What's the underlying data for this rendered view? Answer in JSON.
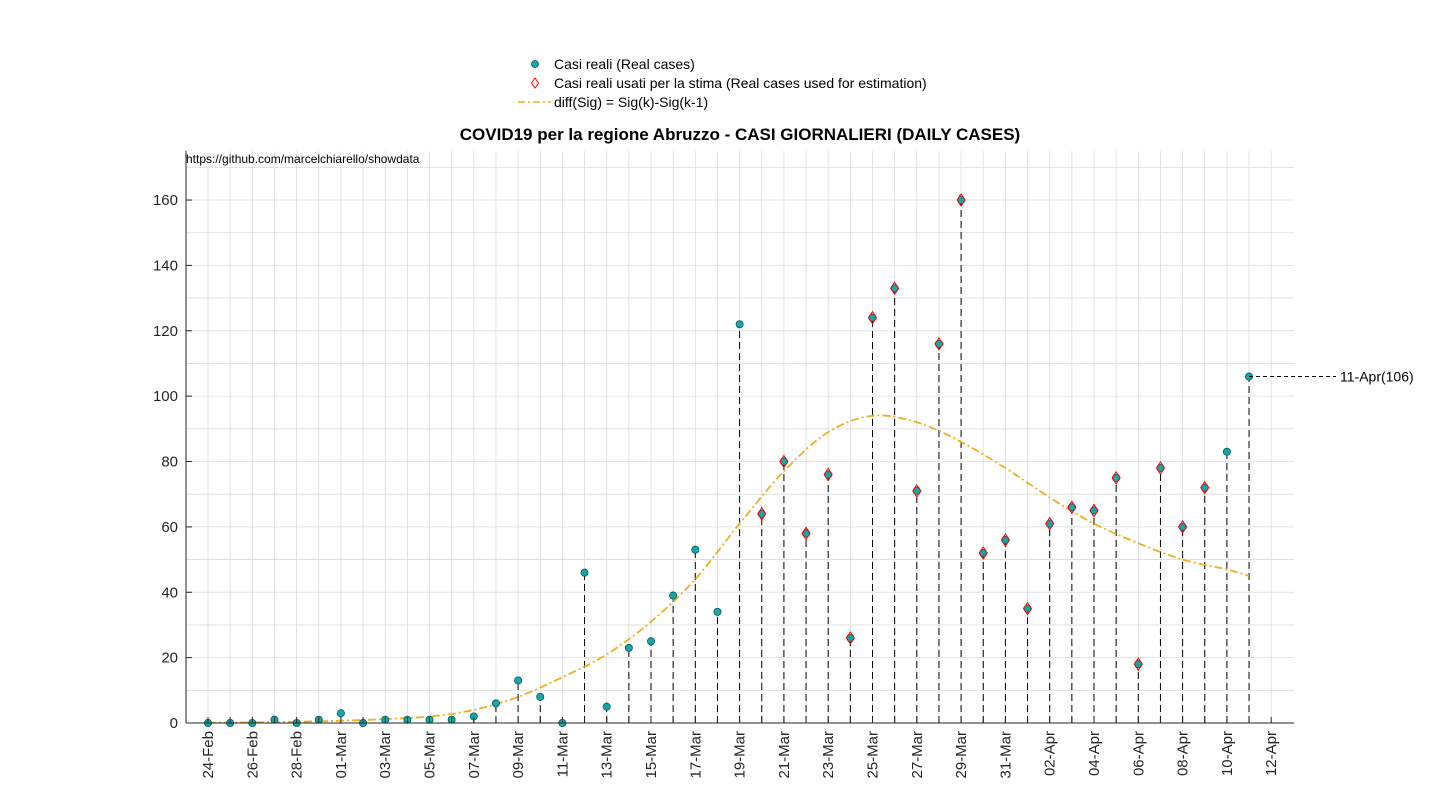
{
  "chart_data": {
    "type": "scatter",
    "title": "COVID19 per la regione Abruzzo - CASI GIORNALIERI (DAILY CASES)",
    "source_note": "https://github.com/marcelchiarello/showdata",
    "xlabel": "",
    "ylabel": "",
    "ylim": [
      0,
      175
    ],
    "yticks": [
      0,
      20,
      40,
      60,
      80,
      100,
      120,
      140,
      160
    ],
    "xticks": [
      "24-Feb",
      "26-Feb",
      "28-Feb",
      "01-Mar",
      "03-Mar",
      "05-Mar",
      "07-Mar",
      "09-Mar",
      "11-Mar",
      "13-Mar",
      "15-Mar",
      "17-Mar",
      "19-Mar",
      "21-Mar",
      "23-Mar",
      "25-Mar",
      "27-Mar",
      "29-Mar",
      "31-Mar",
      "02-Apr",
      "04-Apr",
      "06-Apr",
      "08-Apr",
      "10-Apr",
      "12-Apr"
    ],
    "grid": true,
    "legend_position": "top-center",
    "x_dates": [
      "24-Feb",
      "25-Feb",
      "26-Feb",
      "27-Feb",
      "28-Feb",
      "29-Feb",
      "01-Mar",
      "02-Mar",
      "03-Mar",
      "04-Mar",
      "05-Mar",
      "06-Mar",
      "07-Mar",
      "08-Mar",
      "09-Mar",
      "10-Mar",
      "11-Mar",
      "12-Mar",
      "13-Mar",
      "14-Mar",
      "15-Mar",
      "16-Mar",
      "17-Mar",
      "18-Mar",
      "19-Mar",
      "20-Mar",
      "21-Mar",
      "22-Mar",
      "23-Mar",
      "24-Mar",
      "25-Mar",
      "26-Mar",
      "27-Mar",
      "28-Mar",
      "29-Mar",
      "30-Mar",
      "31-Mar",
      "01-Apr",
      "02-Apr",
      "03-Apr",
      "04-Apr",
      "05-Apr",
      "06-Apr",
      "07-Apr",
      "08-Apr",
      "09-Apr",
      "10-Apr",
      "11-Apr"
    ],
    "series": [
      {
        "name": "Casi reali (Real cases)",
        "values": [
          0,
          0,
          0,
          1,
          0,
          1,
          3,
          0,
          1,
          1,
          1,
          1,
          2,
          6,
          13,
          8,
          0,
          46,
          5,
          23,
          25,
          39,
          53,
          34,
          122,
          64,
          80,
          58,
          76,
          26,
          124,
          133,
          71,
          116,
          160,
          52,
          56,
          35,
          61,
          66,
          65,
          75,
          18,
          78,
          60,
          72,
          83,
          106
        ]
      },
      {
        "name": "Casi reali usati per la stima (Real cases used for estimation)",
        "x_dates": [
          "20-Mar",
          "21-Mar",
          "22-Mar",
          "23-Mar",
          "24-Mar",
          "25-Mar",
          "26-Mar",
          "27-Mar",
          "28-Mar",
          "29-Mar",
          "30-Mar",
          "31-Mar",
          "01-Apr",
          "02-Apr",
          "03-Apr",
          "04-Apr",
          "05-Apr",
          "06-Apr",
          "07-Apr",
          "08-Apr",
          "09-Apr"
        ],
        "values": [
          64,
          80,
          58,
          76,
          26,
          124,
          133,
          71,
          116,
          160,
          52,
          56,
          35,
          61,
          66,
          65,
          75,
          18,
          78,
          60,
          72
        ]
      },
      {
        "name": "diff(Sig) = Sig(k)-Sig(k-1)",
        "x_dates": [
          "24-Feb",
          "26-Feb",
          "28-Feb",
          "01-Mar",
          "03-Mar",
          "05-Mar",
          "07-Mar",
          "09-Mar",
          "11-Mar",
          "13-Mar",
          "15-Mar",
          "17-Mar",
          "19-Mar",
          "21-Mar",
          "23-Mar",
          "25-Mar",
          "27-Mar",
          "29-Mar",
          "31-Mar",
          "02-Apr",
          "04-Apr",
          "06-Apr",
          "08-Apr",
          "10-Apr",
          "11-Apr"
        ],
        "values": [
          0.1,
          0.2,
          0.4,
          0.7,
          1.2,
          2,
          4,
          8,
          14,
          21,
          31,
          44,
          61,
          77,
          89,
          94,
          92,
          86,
          78,
          69,
          61,
          55,
          50,
          47,
          45
        ]
      }
    ],
    "annotation": {
      "label": "11-Apr(106)"
    }
  },
  "colors": {
    "marker_fill": "#13a8a8",
    "diamond_edge": "#ff0000",
    "fit_line": "#edb120",
    "stem": "#000000",
    "grid": "#dcdcdc"
  }
}
